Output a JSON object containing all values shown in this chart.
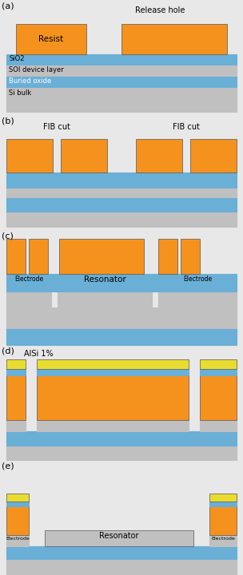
{
  "fig_width": 3.04,
  "fig_height": 7.2,
  "bg_color": "#e8e8e8",
  "colors": {
    "orange": "#F5921E",
    "blue": "#6AAFD6",
    "gray": "#C0C0C0",
    "white": "#ffffff",
    "yellow": "#E8DC30",
    "panel_bg": "#e8e8e8",
    "outline": "#555555"
  },
  "panel_a": {
    "label": "(a)",
    "resist_label": "Resist",
    "release_label": "Release hole",
    "layer_labels": [
      "SiO2",
      "SOI device layer",
      "Buried oxide",
      "Si bulk"
    ]
  },
  "panel_b": {
    "label": "(b)",
    "fib_labels": [
      "FIB cut",
      "FIB cut"
    ]
  },
  "panel_c": {
    "label": "(c)",
    "sub_labels": [
      "Electrode",
      "Resonator",
      "Electrode"
    ]
  },
  "panel_d": {
    "label": "(d)",
    "alsi_label": "AlSi 1%"
  },
  "panel_e": {
    "label": "(e)",
    "sub_labels": [
      "Electrode",
      "Resonator",
      "Electrode"
    ]
  }
}
